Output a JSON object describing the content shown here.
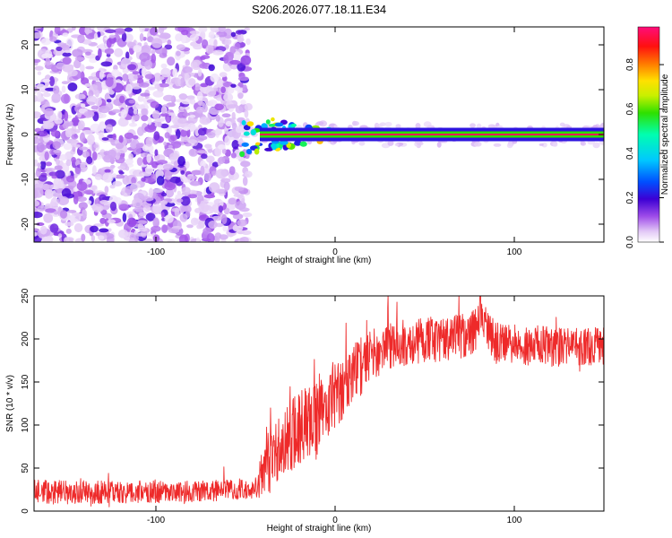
{
  "title": "S206.2026.077.18.11.E34",
  "colors": {
    "snr_line": "#ee2a2a",
    "spectro_background": "#ffffff"
  },
  "chart_data": [
    {
      "type": "heatmap",
      "name": "spectrogram",
      "xlabel": "Height of straight line (km)",
      "ylabel": "Frequency (Hz)",
      "xlim": [
        -168,
        150
      ],
      "ylim": [
        -24,
        24
      ],
      "xticks": [
        -100,
        0,
        100
      ],
      "yticks": [
        -20,
        -10,
        0,
        10,
        20
      ],
      "colorbar": {
        "label": "Normalized spectral amplitude",
        "range": [
          0.0,
          0.97
        ],
        "ticks": [
          0.0,
          0.2,
          0.4,
          0.6,
          0.8
        ],
        "tick_labels": [
          "0.0",
          "0.2",
          "0.4",
          "0.6",
          "0.8"
        ],
        "colormap": "rainbow (white-violet-blue-cyan-green-yellow-red-magenta)"
      },
      "features": {
        "noise_region_height_km": [
          -168,
          -52
        ],
        "noise_amplitude_range": [
          0.0,
          0.2
        ],
        "noise_freq_range_hz": [
          -24,
          24
        ],
        "signal_start_height_km": -52,
        "signal_line_freq_hz": 0,
        "signal_line_amplitude": 0.6,
        "signal_core_amplitude": 0.97,
        "signal_band_halfwidth_hz": 1.5
      }
    },
    {
      "type": "line",
      "name": "snr",
      "xlabel": "Height of straight line (km)",
      "ylabel": "SNR (10 * v/v)",
      "xlim": [
        -168,
        150
      ],
      "ylim": [
        0,
        250
      ],
      "xticks": [
        -100,
        0,
        100
      ],
      "yticks": [
        0,
        50,
        100,
        150,
        200,
        250
      ],
      "trend": [
        {
          "x": -168,
          "y": 22
        },
        {
          "x": -120,
          "y": 22
        },
        {
          "x": -80,
          "y": 23
        },
        {
          "x": -45,
          "y": 25
        },
        {
          "x": -38,
          "y": 55
        },
        {
          "x": -30,
          "y": 75
        },
        {
          "x": -20,
          "y": 95
        },
        {
          "x": -10,
          "y": 115
        },
        {
          "x": 0,
          "y": 135
        },
        {
          "x": 10,
          "y": 158
        },
        {
          "x": 20,
          "y": 180
        },
        {
          "x": 30,
          "y": 192
        },
        {
          "x": 45,
          "y": 198
        },
        {
          "x": 60,
          "y": 200
        },
        {
          "x": 75,
          "y": 205
        },
        {
          "x": 82,
          "y": 220
        },
        {
          "x": 90,
          "y": 195
        },
        {
          "x": 110,
          "y": 192
        },
        {
          "x": 130,
          "y": 190
        },
        {
          "x": 150,
          "y": 192
        }
      ],
      "noise_amplitude": [
        {
          "x": -168,
          "y": 14
        },
        {
          "x": -45,
          "y": 12
        },
        {
          "x": -38,
          "y": 38
        },
        {
          "x": -20,
          "y": 45
        },
        {
          "x": 0,
          "y": 40
        },
        {
          "x": 25,
          "y": 28
        },
        {
          "x": 150,
          "y": 22
        }
      ],
      "peak": {
        "x": 81,
        "y": 250
      }
    }
  ]
}
